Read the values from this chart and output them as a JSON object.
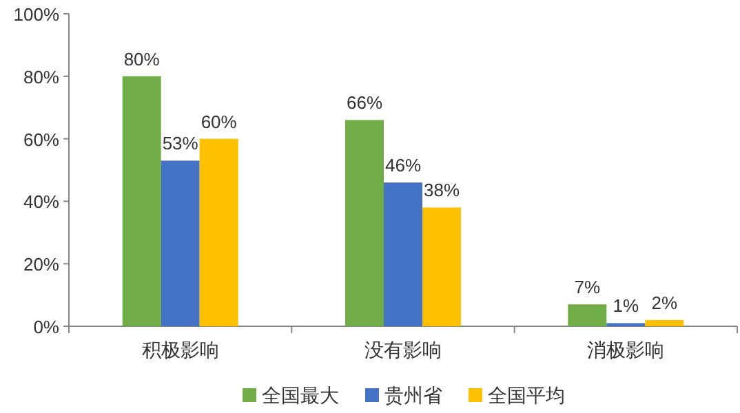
{
  "chart_data": {
    "type": "bar",
    "categories": [
      "积极影响",
      "没有影响",
      "消极影响"
    ],
    "series": [
      {
        "name": "全国最大",
        "color": "#70ad47",
        "values": [
          80,
          66,
          7
        ],
        "value_labels": [
          "80%",
          "66%",
          "7%"
        ]
      },
      {
        "name": "贵州省",
        "color": "#4472c4",
        "values": [
          53,
          46,
          1
        ],
        "value_labels": [
          "53%",
          "46%",
          "1%"
        ]
      },
      {
        "name": "全国平均",
        "color": "#ffc000",
        "values": [
          60,
          38,
          2
        ],
        "value_labels": [
          "60%",
          "38%",
          "2%"
        ]
      }
    ],
    "ylim": [
      0,
      100
    ],
    "yticks": [
      {
        "value": 0,
        "label": "0%"
      },
      {
        "value": 20,
        "label": "20%"
      },
      {
        "value": 40,
        "label": "40%"
      },
      {
        "value": 60,
        "label": "60%"
      },
      {
        "value": 80,
        "label": "80%"
      },
      {
        "value": 100,
        "label": "100%"
      }
    ],
    "grid": false,
    "legend": "bottom"
  }
}
